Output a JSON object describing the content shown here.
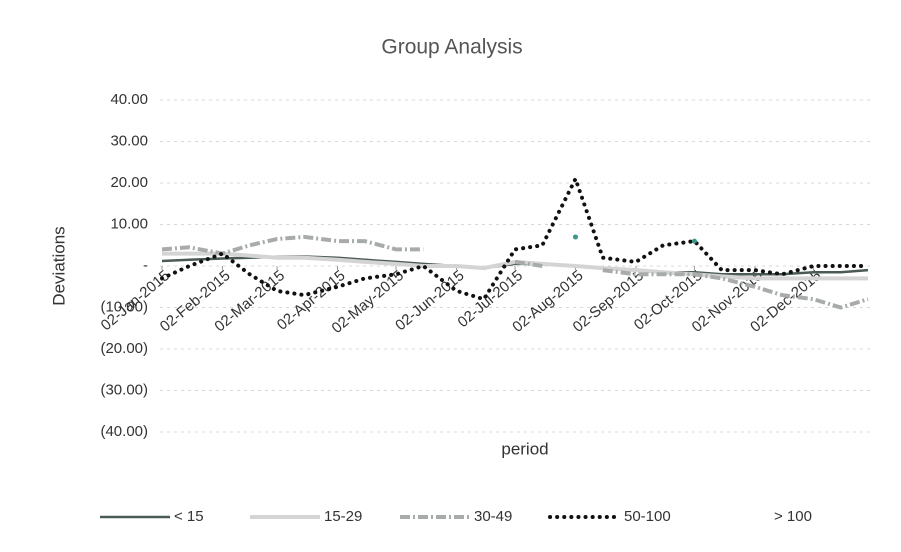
{
  "chart_data": {
    "type": "line",
    "title": "Group Analysis",
    "x_label": "period",
    "y_label": "Deviations",
    "x": [
      "2015-01-02",
      "2015-01-16",
      "2015-02-02",
      "2015-02-16",
      "2015-03-02",
      "2015-03-16",
      "2015-04-02",
      "2015-04-16",
      "2015-05-02",
      "2015-05-16",
      "2015-06-02",
      "2015-06-16",
      "2015-07-02",
      "2015-07-16",
      "2015-08-02",
      "2015-08-16",
      "2015-09-02",
      "2015-09-16",
      "2015-10-02",
      "2015-10-16",
      "2015-11-02",
      "2015-11-16",
      "2015-12-02",
      "2015-12-16",
      "2015-12-30"
    ],
    "xlim": [
      "2015-01-01",
      "2015-12-31"
    ],
    "xticks": [
      {
        "value": "2015-01-02",
        "label": "02-Jan-2015"
      },
      {
        "value": "2015-02-02",
        "label": "02-Feb-2015"
      },
      {
        "value": "2015-03-02",
        "label": "02-Mar-2015"
      },
      {
        "value": "2015-04-02",
        "label": "02-Apr-2015"
      },
      {
        "value": "2015-05-02",
        "label": "02-May-2015"
      },
      {
        "value": "2015-06-02",
        "label": "02-Jun-2015"
      },
      {
        "value": "2015-07-02",
        "label": "02-Jul-2015"
      },
      {
        "value": "2015-08-02",
        "label": "02-Aug-2015"
      },
      {
        "value": "2015-09-02",
        "label": "02-Sep-2015"
      },
      {
        "value": "2015-10-02",
        "label": "02-Oct-2015"
      },
      {
        "value": "2015-11-02",
        "label": "02-Nov-2015"
      },
      {
        "value": "2015-12-02",
        "label": "02-Dec-2015"
      }
    ],
    "ylim": [
      -40,
      40
    ],
    "yticks": [
      {
        "value": 40,
        "label": "40.00"
      },
      {
        "value": 30,
        "label": "30.00"
      },
      {
        "value": 20,
        "label": "20.00"
      },
      {
        "value": 10,
        "label": "10.00"
      },
      {
        "value": 0,
        "label": "-"
      },
      {
        "value": -10,
        "label": "(10.00)"
      },
      {
        "value": -20,
        "label": "(20.00)"
      },
      {
        "value": -30,
        "label": "(30.00)"
      },
      {
        "value": -40,
        "label": "(40.00)"
      }
    ],
    "grid": true,
    "series": [
      {
        "name": "< 15",
        "color": "#4a5a55",
        "style": "solid",
        "values": [
          1.2,
          1.5,
          1.8,
          2,
          2.2,
          2.3,
          2,
          1.5,
          1,
          0.5,
          0,
          -0.5,
          0.5,
          0.5,
          0,
          -0.5,
          -1,
          -1.5,
          -1.5,
          -2,
          -2,
          -2,
          -1.5,
          -1.5,
          -1
        ]
      },
      {
        "name": "15-29",
        "color": "#d4d4d4",
        "style": "solid",
        "values": [
          3,
          3,
          3,
          2.5,
          2,
          2,
          1.5,
          1,
          0.5,
          0,
          0,
          -0.5,
          1,
          0.5,
          0,
          -0.5,
          -1,
          -1.5,
          -2,
          -2.5,
          -3,
          -3,
          -3,
          -3,
          -3
        ]
      },
      {
        "name": "30-49",
        "color": "#a8aca8",
        "style": "dashdot",
        "values": [
          4,
          4.5,
          3,
          5,
          6.5,
          7,
          6,
          6,
          4,
          4,
          null,
          null,
          1,
          0,
          null,
          -1,
          -2,
          -2,
          -2,
          -3,
          -5,
          -7,
          -8,
          -10,
          -8
        ]
      },
      {
        "name": "50-100",
        "color": "#111111",
        "style": "dotted",
        "values": [
          -3,
          0,
          3,
          -2,
          -6,
          -7,
          -5,
          -3,
          -2,
          0,
          -6,
          -8,
          4,
          5,
          21,
          2,
          1,
          5,
          6,
          -1,
          -1,
          -2,
          0,
          0,
          0
        ]
      },
      {
        "name": "> 100",
        "color": "#3a9a8a",
        "style": "dotted",
        "values": [
          null,
          null,
          null,
          null,
          null,
          null,
          null,
          null,
          null,
          null,
          null,
          null,
          null,
          null,
          7,
          null,
          null,
          null,
          6,
          null,
          null,
          null,
          null,
          null,
          null
        ]
      }
    ]
  }
}
